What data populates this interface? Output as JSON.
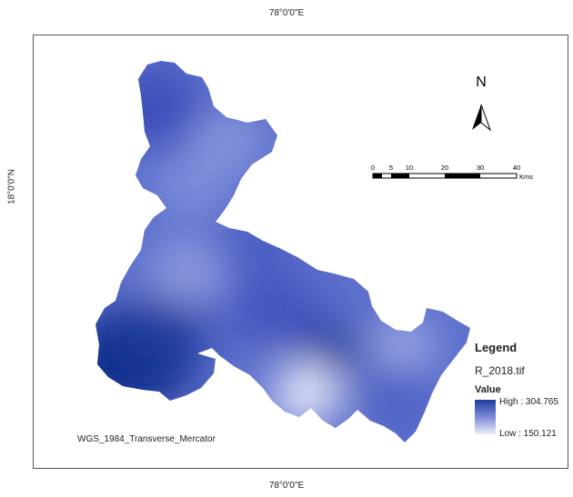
{
  "graticule": {
    "top": "78°0'0\"E",
    "bottom": "78°0'0\"E",
    "left": "18°0'0\"N"
  },
  "north_arrow": {
    "label": "N"
  },
  "scale_bar": {
    "ticks": [
      "0",
      "5",
      "10",
      "20",
      "30",
      "40"
    ],
    "unit": "Kms"
  },
  "legend": {
    "title": "Legend",
    "layer": "R_2018.tif",
    "field": "Value",
    "high_label": "High : 304.765",
    "low_label": "Low : 150.121",
    "high_color": "#1f3d9e",
    "low_color": "#e8eaf8"
  },
  "projection": "WGS_1984_Transverse_Mercator",
  "raster": {
    "max_value": 304.765,
    "min_value": 150.121,
    "colors": {
      "high": "#0b2a86",
      "mid": "#6a7cd3",
      "low": "#eef0fb"
    }
  }
}
